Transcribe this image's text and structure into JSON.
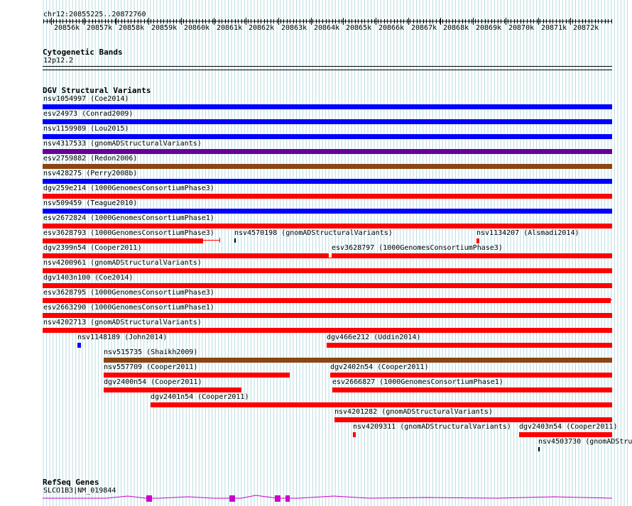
{
  "region": {
    "label": "chr12:20855225..20872760"
  },
  "ruler": {
    "ticks": [
      "20856k",
      "20857k",
      "20858k",
      "20859k",
      "20860k",
      "20861k",
      "20862k",
      "20863k",
      "20864k",
      "20865k",
      "20866k",
      "20867k",
      "20868k",
      "20869k",
      "20870k",
      "20871k",
      "20872k"
    ]
  },
  "cytoband": {
    "title": "Cytogenetic Bands",
    "band": "12p12.2"
  },
  "dgv": {
    "title": "DGV Structural Variants",
    "colors": {
      "blue": "#0000ff",
      "red": "#ff0000",
      "brown": "#8b4513",
      "purple": "#660099",
      "darkred": "#cc0000",
      "black": "#000000"
    },
    "rows": [
      [
        "nsv1054997 (Coe2014)"
      ],
      [
        "esv24973 (Conrad2009)"
      ],
      [
        "nsv1159989 (Lou2015)"
      ],
      [
        "nsv4317533 (gnomADStructuralVariants)"
      ],
      [
        "esv2759882 (Redon2006)"
      ],
      [
        "nsv428275 (Perry2008b)"
      ],
      [
        "dgv259e214 (1000GenomesConsortiumPhase3)"
      ],
      [
        "nsv509459 (Teague2010)"
      ],
      [
        "esv2672824 (1000GenomesConsortiumPhase1)"
      ],
      [
        "esv3628793 (1000GenomesConsortiumPhase3)",
        "nsv4570198 (gnomADStructuralVariants)",
        "nsv1134207 (Alsmadi2014)"
      ],
      [
        "dgv2399n54 (Cooper2011)",
        "esv3628797 (1000GenomesConsortiumPhase3)"
      ],
      [
        "nsv4200961 (gnomADStructuralVariants)"
      ],
      [
        "dgv1403n100 (Coe2014)"
      ],
      [
        "esv3628795 (1000GenomesConsortiumPhase3)"
      ],
      [
        "esv2663290 (1000GenomesConsortiumPhase1)"
      ],
      [
        "nsv4202713 (gnomADStructuralVariants)"
      ],
      [
        "nsv1148189 (John2014)",
        "dgv466e212 (Uddin2014)"
      ],
      [
        "nsv515735 (Shaikh2009)"
      ],
      [
        "nsv557709 (Cooper2011)",
        "dgv2402n54 (Cooper2011)"
      ],
      [
        "dgv2400n54 (Cooper2011)",
        "esv2666827 (1000GenomesConsortiumPhase1)"
      ],
      [
        "dgv2401n54 (Cooper2011)"
      ],
      [
        "nsv4201282 (gnomADStructuralVariants)"
      ],
      [
        "nsv4209311 (gnomADStructuralVariants)",
        "dgv2403n54 (Cooper2011)"
      ],
      [
        "nsv4503730 (gnomADStru"
      ]
    ]
  },
  "refseq": {
    "title": "RefSeq Genes",
    "gene": "SLCO1B3|NM_019844",
    "color": "#cc00cc"
  }
}
